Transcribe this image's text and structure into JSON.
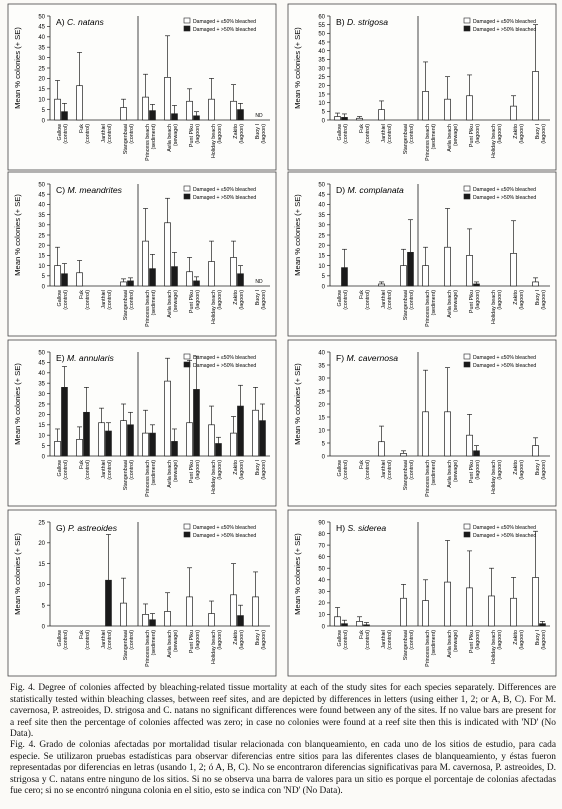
{
  "figure": {
    "caption_en": "Fig. 4. Degree of colonies affected by bleaching-related tissue mortality at each of the study sites for each species separately. Differences are statistically tested within bleaching classes, between reef sites, and are depicted by differences in letters (using either 1, 2; or A, B, C). For M. cavernosa, P. astreoides, D. strigosa and C. natans no significant differences were found between any of the sites. If no value bars are present for a reef site then the percentage of colonies affected was zero; in case no colonies were found at a reef site then this is indicated with 'ND' (No Data).",
    "caption_es": "Fig. 4. Grado de colonias afectadas por mortalidad tisular relacionada con blanqueamiento, en cada uno de los sitios de estudio, para cada especie. Se utilizaron pruebas estadísticas para observar diferencias entre sitios para las diferentes clases de blanqueamiento, y éstas fueron representadas por diferencias en letras (usando 1, 2; ó A, B, C). No se encontraron diferencias significativas para M. cavernosa, P. astreoides, D. strigosa y C. natans entre ninguno de los sitios. Si no se observa una barra de valores para un sitio es porque el porcentaje de colonias afectadas fue cero; si no se encontró ninguna colonia en el sitio, esto se indica con 'ND' (No Data)."
  },
  "colors": {
    "light": "#ffffff",
    "dark": "#1a1a1a",
    "axis": "#222222"
  },
  "chart_data": [
    {
      "panel": "A) C. natans",
      "type": "bar",
      "ylabel": "Mean % colonies (+ SE)",
      "ylim": [
        0,
        50
      ],
      "yticks": [
        0,
        5,
        10,
        15,
        20,
        25,
        30,
        35,
        40,
        45,
        50
      ],
      "categories": [
        "Gallow (control)",
        "Fuk (control)",
        "Janthiel (control)",
        "Stangenbaai (control)",
        "Princess beach (sediment)",
        "Avila beach (sewage)",
        "Punt Piku (lagoon)",
        "Holiday beach (lagoon)",
        "Zakito (lagoon)",
        "Buoy I (lagoon)"
      ],
      "legend": [
        "Damaged + ≤50% bleached",
        "Damaged + >50% bleached"
      ],
      "series": [
        {
          "name": "Damaged + ≤50% bleached",
          "values": [
            10,
            16.5,
            0,
            6,
            11,
            20.5,
            9,
            10,
            9,
            null
          ],
          "errors": [
            9,
            16,
            0,
            4,
            11,
            20,
            6,
            10,
            8,
            0
          ]
        },
        {
          "name": "Damaged + >50% bleached",
          "values": [
            4,
            0,
            0,
            0,
            4.5,
            3,
            2,
            0,
            5,
            null
          ],
          "errors": [
            4,
            0,
            0,
            0,
            3,
            4,
            2,
            0,
            3,
            0
          ]
        }
      ],
      "nd": [
        false,
        false,
        false,
        false,
        false,
        false,
        false,
        false,
        false,
        true
      ]
    },
    {
      "panel": "B) D. strigosa",
      "type": "bar",
      "ylabel": "Mean % colonies (+ SE)",
      "ylim": [
        0,
        60
      ],
      "yticks": [
        0,
        5,
        10,
        15,
        20,
        25,
        30,
        35,
        40,
        45,
        50,
        55,
        60
      ],
      "categories": [
        "Gallow (control)",
        "Fuk (control)",
        "Janthiel (control)",
        "Stangenbaai (control)",
        "Princess beach (sediment)",
        "Avila beach (sewage)",
        "Punt Piku (lagoon)",
        "Holiday beach (lagoon)",
        "Zakito (lagoon)",
        "Buoy I (lagoon)"
      ],
      "legend": [
        "Damaged + ≤50% bleached",
        "Damaged + >50% bleached"
      ],
      "series": [
        {
          "name": "Damaged + ≤50% bleached",
          "values": [
            2,
            1,
            6,
            0,
            16.5,
            12,
            14,
            0,
            8,
            28
          ],
          "errors": [
            2,
            1,
            5,
            0,
            17,
            13,
            12,
            0,
            6,
            27
          ]
        },
        {
          "name": "Damaged + >50% bleached",
          "values": [
            1.5,
            0,
            0,
            0,
            0,
            0,
            0,
            0,
            0,
            0
          ],
          "errors": [
            2,
            0,
            0,
            0,
            0,
            0,
            0,
            0,
            0,
            0
          ]
        }
      ],
      "nd": [
        false,
        false,
        false,
        false,
        false,
        false,
        false,
        false,
        false,
        false
      ]
    },
    {
      "panel": "C) M. meandrites",
      "type": "bar",
      "ylabel": "Mean % colonies (+ SE)",
      "ylim": [
        0,
        50
      ],
      "yticks": [
        0,
        5,
        10,
        15,
        20,
        25,
        30,
        35,
        40,
        45,
        50
      ],
      "categories": [
        "Gallow (control)",
        "Fuk (control)",
        "Janthiel (control)",
        "Stangenbaai (control)",
        "Princess beach (sediment)",
        "Avila beach (sewage)",
        "Punt Piku (lagoon)",
        "Holiday beach (lagoon)",
        "Zakito (lagoon)",
        "Buoy I (lagoon)"
      ],
      "legend": [
        "Damaged + ≤50% bleached",
        "Damaged + >50% bleached"
      ],
      "series": [
        {
          "name": "Damaged + ≤50% bleached",
          "values": [
            10,
            6.5,
            0,
            2,
            22,
            31,
            7,
            12,
            14,
            null
          ],
          "errors": [
            9,
            6,
            0,
            1.5,
            16,
            12,
            7,
            10,
            8,
            0
          ]
        },
        {
          "name": "Damaged + >50% bleached",
          "values": [
            6,
            0,
            0,
            2.5,
            8.5,
            9.5,
            2.5,
            0,
            6,
            null
          ],
          "errors": [
            5,
            0,
            0,
            1.5,
            7,
            7,
            2,
            0,
            4,
            0
          ]
        }
      ],
      "nd": [
        false,
        false,
        false,
        false,
        false,
        false,
        false,
        false,
        false,
        true
      ]
    },
    {
      "panel": "D) M. complanata",
      "type": "bar",
      "ylabel": "Mean % colonies (+ SE)",
      "ylim": [
        0,
        50
      ],
      "yticks": [
        0,
        5,
        10,
        15,
        20,
        25,
        30,
        35,
        40,
        45,
        50
      ],
      "categories": [
        "Gallow (control)",
        "Fuk (control)",
        "Janthiel (control)",
        "Stangenbaai (control)",
        "Princess beach (sediment)",
        "Avila beach (sewage)",
        "Punt Piku (lagoon)",
        "Holiday beach (lagoon)",
        "Zakito (lagoon)",
        "Buoy I (lagoon)"
      ],
      "legend": [
        "Damaged + ≤50% bleached",
        "Damaged + >50% bleached"
      ],
      "series": [
        {
          "name": "Damaged + ≤50% bleached",
          "values": [
            0,
            0,
            1,
            10,
            10,
            19,
            15,
            0,
            16,
            2
          ],
          "errors": [
            0,
            0,
            1,
            8,
            9,
            19,
            13,
            0,
            16,
            2
          ]
        },
        {
          "name": "Damaged + >50% bleached",
          "values": [
            9,
            0,
            0,
            16.5,
            0,
            0,
            1,
            0,
            0,
            0
          ],
          "errors": [
            9,
            0,
            0,
            16,
            0,
            0,
            1,
            0,
            0,
            0
          ]
        }
      ],
      "nd": [
        false,
        false,
        false,
        false,
        false,
        false,
        false,
        false,
        false,
        false
      ]
    },
    {
      "panel": "E) M. annularis",
      "type": "bar",
      "ylabel": "Mean % colonies (+ SE)",
      "ylim": [
        0,
        50
      ],
      "yticks": [
        0,
        5,
        10,
        15,
        20,
        25,
        30,
        35,
        40,
        45,
        50
      ],
      "categories": [
        "Gallow (control)",
        "Fuk (control)",
        "Janthiel (control)",
        "Stangenbaai (control)",
        "Princess beach (sediment)",
        "Avila beach (sewage)",
        "Punt Piku (lagoon)",
        "Holiday beach (lagoon)",
        "Zakito (lagoon)",
        "Buoy I (lagoon)"
      ],
      "legend": [
        "Damaged + ≤50% bleached",
        "Damaged + >50% bleached"
      ],
      "series": [
        {
          "name": "Damaged + ≤50% bleached",
          "values": [
            7,
            8,
            16,
            17,
            11,
            36,
            16,
            15,
            11,
            22
          ],
          "errors": [
            6,
            6,
            7,
            8,
            11,
            11,
            30,
            9,
            8,
            11
          ]
        },
        {
          "name": "Damaged + >50% bleached",
          "values": [
            33,
            21,
            12,
            15,
            11,
            7,
            32,
            6,
            24,
            17
          ],
          "errors": [
            10,
            12,
            4,
            6,
            4,
            6,
            16,
            3,
            10,
            8
          ]
        }
      ],
      "nd": [
        false,
        false,
        false,
        false,
        false,
        false,
        false,
        false,
        false,
        false
      ]
    },
    {
      "panel": "F) M. cavernosa",
      "type": "bar",
      "ylabel": "Mean % colonies (+ SE)",
      "ylim": [
        0,
        40
      ],
      "yticks": [
        0,
        5,
        10,
        15,
        20,
        25,
        30,
        35,
        40
      ],
      "categories": [
        "Gallow (control)",
        "Fuk (control)",
        "Janthiel (control)",
        "Stangenbaai (control)",
        "Princess beach (sediment)",
        "Avila beach (sewage)",
        "Punt Piku (lagoon)",
        "Holiday beach (lagoon)",
        "Zakito (lagoon)",
        "Buoy I (lagoon)"
      ],
      "legend": [
        "Damaged + ≤50% bleached",
        "Damaged + >50% bleached"
      ],
      "series": [
        {
          "name": "Damaged + ≤50% bleached",
          "values": [
            0,
            0,
            5.5,
            1,
            17,
            17,
            8,
            0,
            0,
            4
          ],
          "errors": [
            0,
            0,
            6,
            1,
            16,
            17,
            8,
            0,
            0,
            3
          ]
        },
        {
          "name": "Damaged + >50% bleached",
          "values": [
            0,
            0,
            0,
            0,
            0,
            0,
            2,
            0,
            0,
            0
          ],
          "errors": [
            0,
            0,
            0,
            0,
            0,
            0,
            2,
            0,
            0,
            0
          ]
        }
      ],
      "nd": [
        false,
        false,
        false,
        false,
        false,
        false,
        false,
        false,
        false,
        false
      ]
    },
    {
      "panel": "G) P. astreoides",
      "type": "bar",
      "ylabel": "Mean % colonies (+ SE)",
      "ylim": [
        0,
        25
      ],
      "yticks": [
        0,
        5,
        10,
        15,
        20,
        25
      ],
      "categories": [
        "Gallow (control)",
        "Fuk (control)",
        "Janthiel (control)",
        "Stangenbaai (control)",
        "Princess beach (sediment)",
        "Avila beach (sewage)",
        "Punt Piku (lagoon)",
        "Holiday beach (lagoon)",
        "Zakito (lagoon)",
        "Buoy I (lagoon)"
      ],
      "legend": [
        "Damaged + ≤50% bleached",
        "Damaged + >50% bleached"
      ],
      "series": [
        {
          "name": "Damaged + ≤50% bleached",
          "values": [
            0,
            0,
            0,
            5.5,
            2.8,
            3.5,
            7,
            3,
            7.5,
            7
          ],
          "errors": [
            0,
            0,
            0,
            6,
            2.5,
            4.5,
            7,
            3,
            7.5,
            6
          ]
        },
        {
          "name": "Damaged + >50% bleached",
          "values": [
            0,
            0,
            11,
            0,
            1.5,
            0,
            0,
            0,
            2.5,
            0
          ],
          "errors": [
            0,
            0,
            11,
            0,
            1.5,
            0,
            0,
            0,
            2.5,
            0
          ]
        }
      ],
      "nd": [
        false,
        false,
        false,
        false,
        false,
        false,
        false,
        false,
        false,
        false
      ]
    },
    {
      "panel": "H) S. siderea",
      "type": "bar",
      "ylabel": "Mean % colonies (+ SE)",
      "ylim": [
        0,
        90
      ],
      "yticks": [
        0,
        10,
        20,
        30,
        40,
        50,
        60,
        70,
        80,
        90
      ],
      "categories": [
        "Gallow (control)",
        "Fuk (control)",
        "Janthiel (control)",
        "Stangenbaai (control)",
        "Princess beach (sediment)",
        "Avila beach (sewage)",
        "Punt Piku (lagoon)",
        "Holiday beach (lagoon)",
        "Zakito (lagoon)",
        "Buoy I (lagoon)"
      ],
      "legend": [
        "Damaged + ≤50% bleached",
        "Damaged + >50% bleached"
      ],
      "series": [
        {
          "name": "Damaged + ≤50% bleached",
          "values": [
            8,
            4,
            0,
            24,
            22,
            38,
            33,
            26,
            24,
            42
          ],
          "errors": [
            8,
            4,
            0,
            12,
            18,
            36,
            32,
            24,
            18,
            40
          ]
        },
        {
          "name": "Damaged + >50% bleached",
          "values": [
            2,
            1,
            0,
            0,
            0,
            0,
            0,
            0,
            0,
            2
          ],
          "errors": [
            3,
            2,
            0,
            0,
            0,
            0,
            0,
            0,
            0,
            2
          ]
        }
      ],
      "nd": [
        false,
        false,
        false,
        false,
        false,
        false,
        false,
        false,
        false,
        false
      ]
    }
  ]
}
